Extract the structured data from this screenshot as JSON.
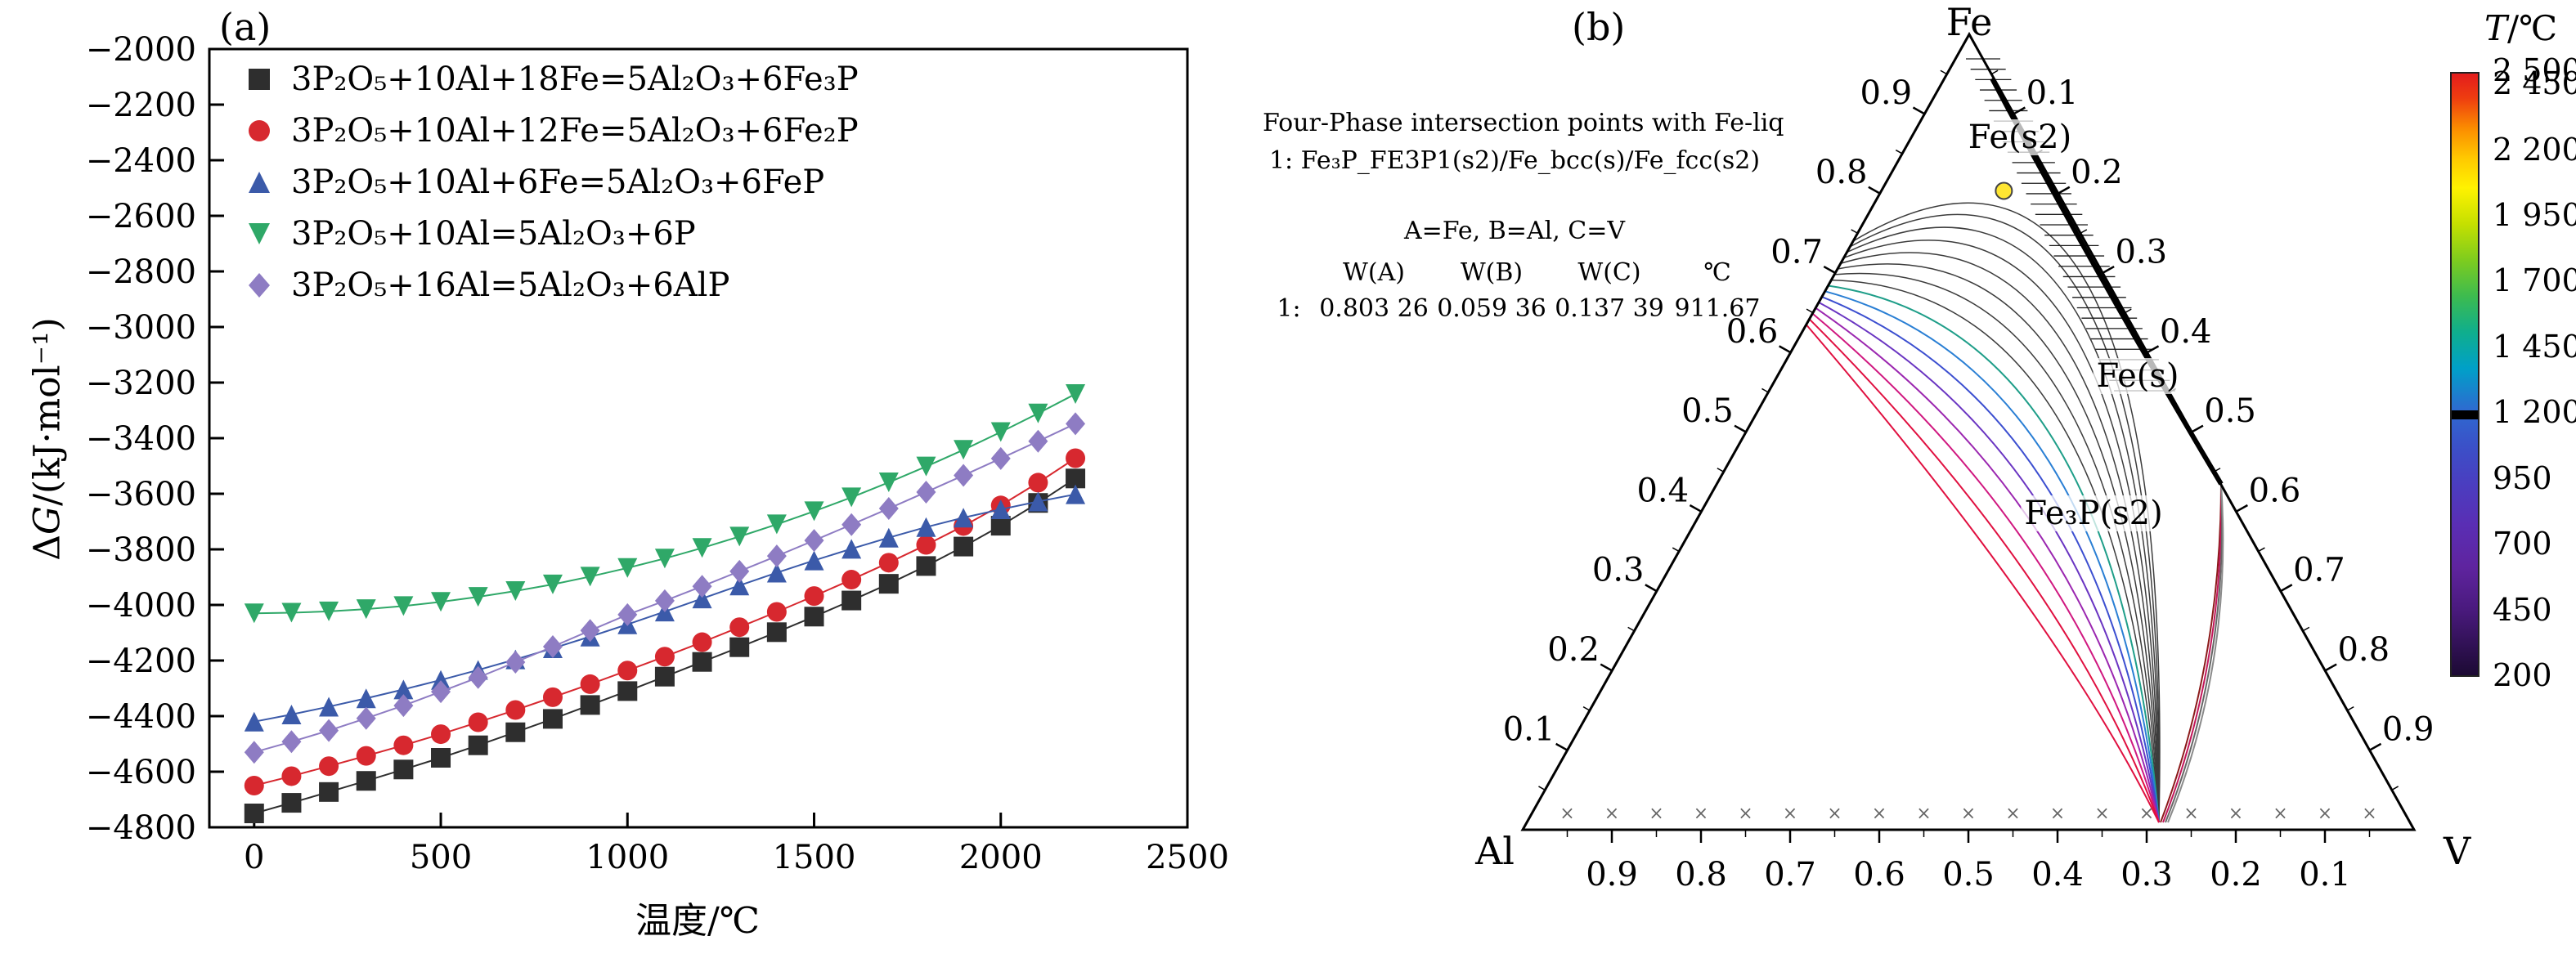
{
  "chart_data": [
    {
      "type": "line",
      "panel": "(a)",
      "xlabel": "温度/℃",
      "ylabel": "ΔG/(kJ·mol⁻¹)",
      "ylabel_parts": [
        "Δ",
        "G",
        "/(kJ·mol⁻¹)"
      ],
      "xlim": [
        -120,
        2500
      ],
      "ylim": [
        -4800,
        -2000
      ],
      "xticks": [
        0,
        500,
        1000,
        1500,
        2000,
        2500
      ],
      "yticks": [
        -2000,
        -2200,
        -2400,
        -2600,
        -2800,
        -3000,
        -3200,
        -3400,
        -3600,
        -3800,
        -4000,
        -4200,
        -4400,
        -4600,
        -4800
      ],
      "grid": false,
      "legend_position": "top-left-inside",
      "x": [
        0,
        100,
        200,
        300,
        400,
        500,
        600,
        700,
        800,
        900,
        1000,
        1100,
        1200,
        1300,
        1400,
        1500,
        1600,
        1700,
        1800,
        1900,
        2000,
        2100,
        2200
      ],
      "series": [
        {
          "label": "3P₂O₅+10Al+18Fe=5Al₂O₃+6Fe₃P",
          "marker": "square",
          "color": "#2e2e2e",
          "values": [
            -4750,
            -4712,
            -4673,
            -4633,
            -4592,
            -4550,
            -4505,
            -4458,
            -4410,
            -4360,
            -4310,
            -4258,
            -4205,
            -4152,
            -4098,
            -4042,
            -3984,
            -3924,
            -3860,
            -3790,
            -3715,
            -3633,
            -3545
          ]
        },
        {
          "label": "3P₂O₅+10Al+12Fe=5Al₂O₃+6Fe₂P",
          "marker": "circle",
          "color": "#d7282f",
          "values": [
            -4650,
            -4616,
            -4580,
            -4543,
            -4505,
            -4465,
            -4422,
            -4378,
            -4332,
            -4285,
            -4236,
            -4186,
            -4134,
            -4080,
            -4025,
            -3968,
            -3909,
            -3848,
            -3784,
            -3716,
            -3642,
            -3560,
            -3472
          ]
        },
        {
          "label": "3P₂O₅+10Al+6Fe=5Al₂O₃+6FeP",
          "marker": "triangle-up",
          "color": "#3b5aa9",
          "values": [
            -4420,
            -4394,
            -4366,
            -4336,
            -4304,
            -4270,
            -4234,
            -4196,
            -4156,
            -4114,
            -4070,
            -4024,
            -3977,
            -3930,
            -3884,
            -3840,
            -3798,
            -3758,
            -3720,
            -3686,
            -3656,
            -3628,
            -3602
          ]
        },
        {
          "label": "3P₂O₅+10Al=5Al₂O₃+6P",
          "marker": "triangle-down",
          "color": "#2fa868",
          "values": [
            -4030,
            -4028,
            -4023,
            -4015,
            -4004,
            -3989,
            -3971,
            -3950,
            -3926,
            -3898,
            -3867,
            -3833,
            -3795,
            -3754,
            -3710,
            -3663,
            -3613,
            -3559,
            -3502,
            -3442,
            -3378,
            -3311,
            -3241
          ]
        },
        {
          "label": "3P₂O₅+16Al=5Al₂O₃+6AlP",
          "marker": "diamond",
          "color": "#8e7cc3",
          "values": [
            -4530,
            -4492,
            -4452,
            -4408,
            -4362,
            -4312,
            -4261,
            -4206,
            -4150,
            -4092,
            -4035,
            -3985,
            -3933,
            -3879,
            -3824,
            -3768,
            -3711,
            -3653,
            -3594,
            -3534,
            -3473,
            -3411,
            -3348
          ]
        }
      ]
    },
    {
      "type": "ternary-contour",
      "panel": "(b)",
      "vertices": {
        "top": "Fe",
        "bottom_left": "Al",
        "bottom_right": "V"
      },
      "axes": {
        "left_labels": [
          "0.9",
          "0.8",
          "0.7",
          "0.6",
          "0.5",
          "0.4",
          "0.3",
          "0.2",
          "0.1"
        ],
        "right_labels": [
          "0.1",
          "0.2",
          "0.3",
          "0.4",
          "0.5",
          "0.6",
          "0.7",
          "0.8",
          "0.9"
        ],
        "bottom_labels": [
          "0.9",
          "0.8",
          "0.7",
          "0.6",
          "0.5",
          "0.4",
          "0.3",
          "0.2",
          "0.1"
        ]
      },
      "region_labels": [
        "Fe(s2)",
        "Fe(s)",
        "Fe₃P(s2)"
      ],
      "annotation": {
        "line1": "Four-Phase intersection points with Fe-liq",
        "line2": "1: Fe₃P_FE3P1(s2)/Fe_bcc(s)/Fe_fcc(s2)",
        "line3": "A=Fe, B=Al, C=V",
        "table": {
          "headers": [
            "W(A)",
            "W(B)",
            "W(C)",
            "℃"
          ],
          "rows": [
            [
              "1:",
              "0.803 26",
              "0.059 36",
              "0.137 39",
              "911.67"
            ]
          ]
        }
      },
      "four_phase_point": {
        "W_A": 0.80326,
        "W_B": 0.05936,
        "W_C": 0.13739,
        "temp_c": 911.67,
        "marker_color": "#ffe633"
      },
      "colorbar": {
        "title": "T/℃",
        "title_italic": "T",
        "title_rest": "/℃",
        "ticks": [
          "2 500",
          "2 450",
          "2 200",
          "1 950",
          "1 700",
          "1 450",
          "1 200",
          "950",
          "700",
          "450",
          "200"
        ],
        "range_max": 2500,
        "range_min": 200,
        "band_value": 1200,
        "gradient": [
          [
            0,
            "#e31d1d"
          ],
          [
            4,
            "#ee3c10"
          ],
          [
            9,
            "#fb8b00"
          ],
          [
            14,
            "#ffc800"
          ],
          [
            19,
            "#fff200"
          ],
          [
            25,
            "#c5e000"
          ],
          [
            31,
            "#7ecc1e"
          ],
          [
            37,
            "#3dbb4f"
          ],
          [
            43,
            "#0fae8d"
          ],
          [
            49,
            "#00a0c8"
          ],
          [
            56,
            "#2e6ad0"
          ],
          [
            62,
            "#3b50c8"
          ],
          [
            68,
            "#4a3ec0"
          ],
          [
            75,
            "#5a2eb4"
          ],
          [
            82,
            "#5f249f"
          ],
          [
            89,
            "#4a1a7e"
          ],
          [
            100,
            "#1c0a33"
          ]
        ]
      }
    }
  ]
}
